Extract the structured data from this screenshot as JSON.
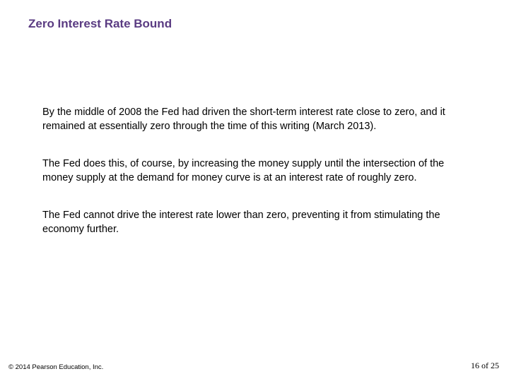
{
  "slide": {
    "title": "Zero Interest Rate Bound",
    "title_color": "#5a3b82",
    "paragraphs": [
      "By the middle of 2008 the Fed had driven the short-term interest rate close to zero, and it remained at essentially zero through the time of this writing (March 2013).",
      "The Fed does this, of course, by increasing the money supply until the intersection of the money supply at the demand for money curve is at an interest rate of roughly zero.",
      "The Fed cannot drive the interest rate lower than zero, preventing it from stimulating the economy further."
    ],
    "copyright": "© 2014 Pearson Education, Inc.",
    "page_label": "16 of 25",
    "background_color": "#ffffff",
    "body_text_color": "#000000"
  }
}
